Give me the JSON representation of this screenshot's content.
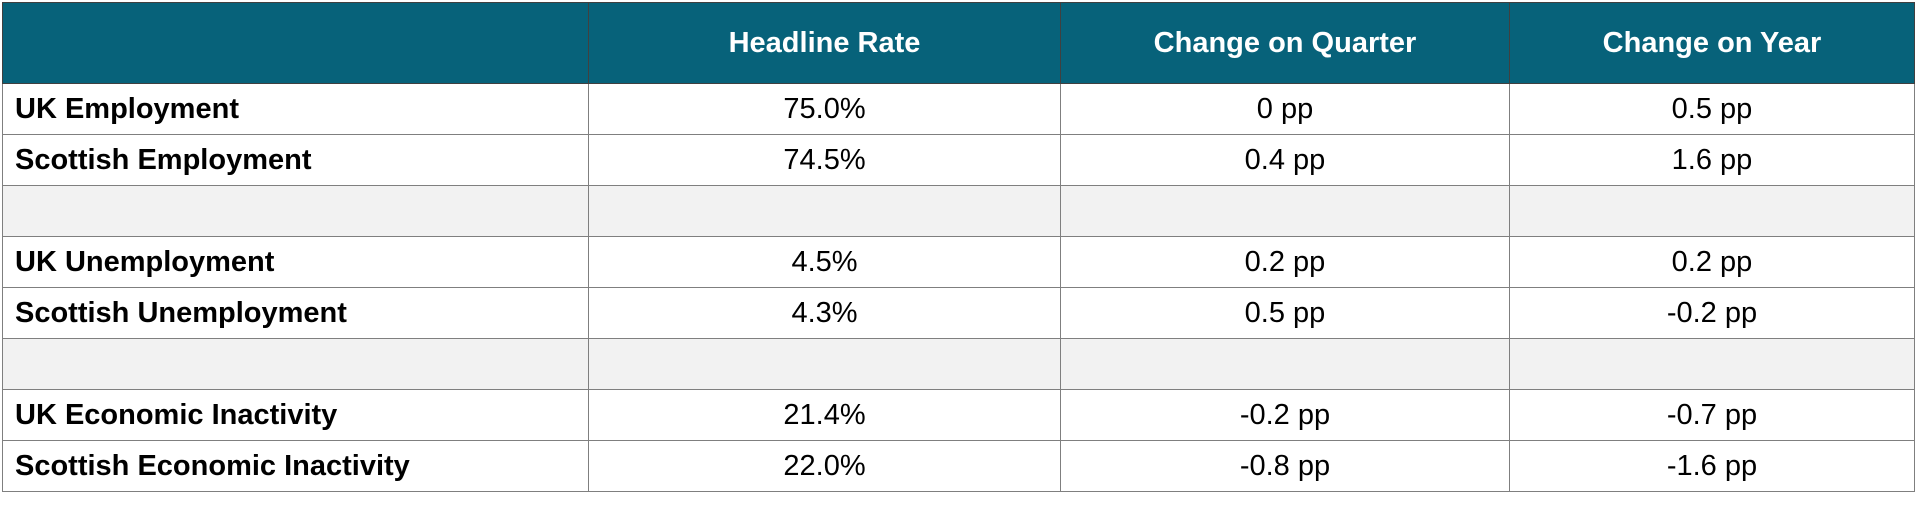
{
  "table": {
    "columns": [
      "Headline Rate",
      "Change on Quarter",
      "Change on Year"
    ],
    "rows": [
      [
        "UK Employment",
        "75.0%",
        "0 pp",
        "0.5 pp"
      ],
      [
        "Scottish Employment",
        "74.5%",
        "0.4 pp",
        "1.6 pp"
      ],
      [
        "UK Unemployment",
        "4.5%",
        "0.2 pp",
        "0.2 pp"
      ],
      [
        "Scottish Unemployment",
        "4.3%",
        "0.5 pp",
        "-0.2 pp"
      ],
      [
        "UK Economic Inactivity",
        "21.4%",
        "-0.2 pp",
        "-0.7 pp"
      ],
      [
        "Scottish Economic Inactivity",
        "22.0%",
        "-0.8 pp",
        "-1.6 pp"
      ]
    ]
  }
}
